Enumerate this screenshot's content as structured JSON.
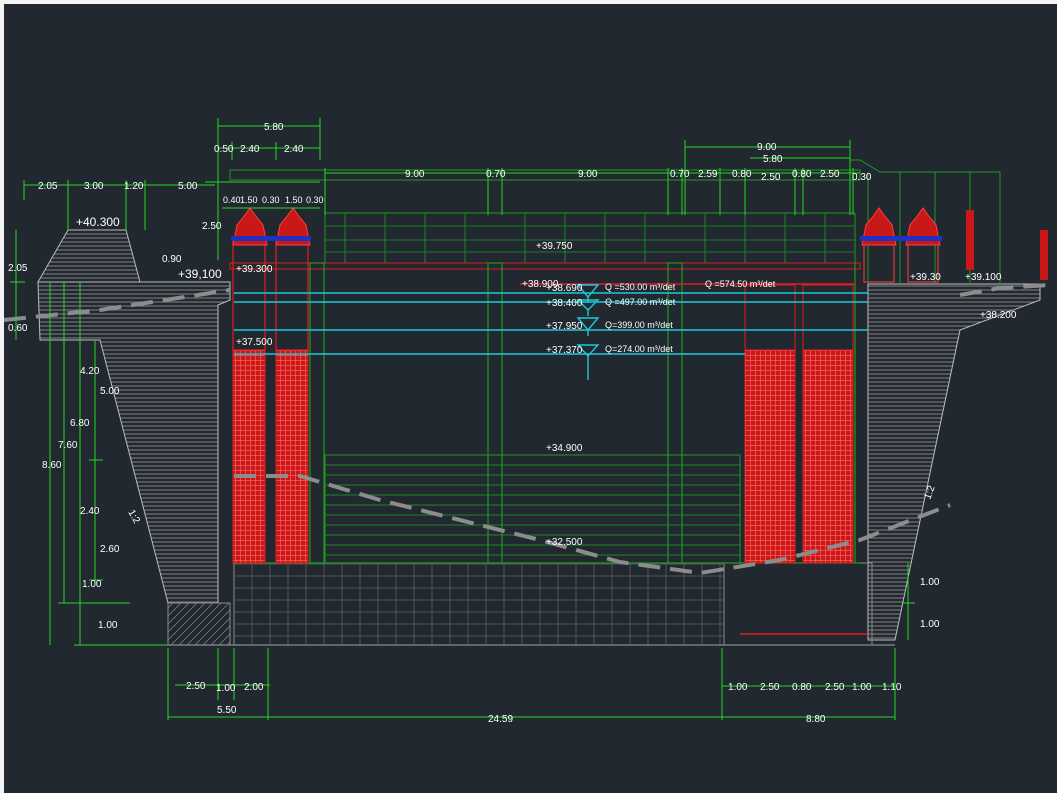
{
  "colors": {
    "background": "#212830",
    "dimension_line": "#22d822",
    "structure": "#1e9a1e",
    "gate": "#e01e1e",
    "water_level": "#1ec8d8",
    "ground_line": "#8c8c8c",
    "hatch": "#bdbdbd"
  },
  "dimensions": {
    "top": {
      "d580_left": "5.80",
      "d050": "0.50",
      "d240_a": "2.40",
      "d240_b": "2.40",
      "d900_right": "9.00",
      "d580_right": "5.80",
      "d205": "2.05",
      "d300": "3.00",
      "d120": "1.20",
      "d500": "5.00",
      "d900_a": "9.00",
      "d070_a": "0.70",
      "d900_b": "9.00",
      "d070_b": "0.70",
      "d259": "2.59",
      "d080_a": "0.80",
      "d250_a": "2.50",
      "d080_b": "0.80",
      "d250_b": "2.50",
      "d030": "0.30",
      "d040": "0.40",
      "d150_a": "1.50",
      "d030_b": "0.30",
      "d150_b": "1.50",
      "d030_c": "0.30",
      "d250_left": "2.50"
    },
    "left": {
      "d205": "2.05",
      "d060": "0.60",
      "d090": "0.90",
      "d420": "4.20",
      "d500": "5.00",
      "d680": "6.80",
      "d760": "7.60",
      "d860": "8.60",
      "d240": "2.40",
      "d260": "2.60",
      "d100_a": "1.00",
      "d100_b": "1.00"
    },
    "right": {
      "d100_a": "1.00",
      "d100_b": "1.00"
    },
    "bottom": {
      "d250": "2.50",
      "d100": "1.00",
      "d200": "2.00",
      "d550": "5.50",
      "d2459": "24.59",
      "d880": "8.80",
      "r100_a": "1.00",
      "r250_a": "2.50",
      "r080": "0.80",
      "r250_b": "2.50",
      "r100_b": "1.00",
      "r110": "1.10"
    }
  },
  "elevations": {
    "e40300": "+40.300",
    "e39100": "+39,100",
    "e39300": "+39.300",
    "e37500": "+37.500",
    "e39750": "+39.750",
    "e38900": "+38.900",
    "e38690": "+38.690",
    "e38400": "+38.400",
    "e37950": "+37.950",
    "e37370": "+37.370",
    "e34900": "+34.900",
    "e32500": "+32.500",
    "e39300_r": "+39.30",
    "e38200": "+38.200",
    "e39100_r": "+39.100"
  },
  "flows": {
    "q1": "Q =530.00 m³/det",
    "q2": "Q =497.00 m³/det",
    "q3": "Q=399.00 m³/det",
    "q4": "Q=274.00 m³/det",
    "q5": "Q =574.50 m³/det"
  },
  "slopes": {
    "left": "1:2",
    "right": "1:2"
  }
}
